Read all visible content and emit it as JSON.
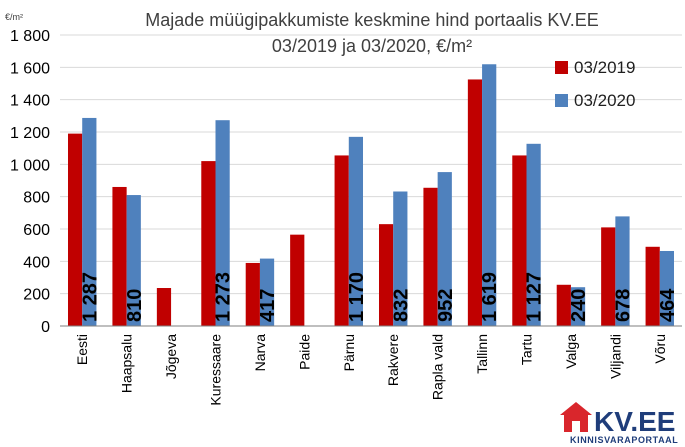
{
  "chart_data": {
    "type": "bar",
    "title_lines": [
      "Majade müügipakkumiste keskmine hind portaalis KV.EE",
      "03/2019 ja 03/2020, €/m²"
    ],
    "unit_label": "€/m²",
    "categories": [
      "Eesti",
      "Haapsalu",
      "Jõgeva",
      "Kuressaare",
      "Narva",
      "Paide",
      "Pärnu",
      "Rakvere",
      "Rapla vald",
      "Tallinn",
      "Tartu",
      "Valga",
      "Viljandi",
      "Võru"
    ],
    "series": [
      {
        "name": "03/2019",
        "color": "#c00000",
        "values": [
          1190,
          860,
          235,
          1020,
          390,
          565,
          1055,
          630,
          855,
          1525,
          1055,
          255,
          610,
          490
        ]
      },
      {
        "name": "03/2020",
        "color": "#4f81bd",
        "values": [
          1287,
          810,
          null,
          1273,
          417,
          null,
          1170,
          832,
          952,
          1619,
          1127,
          240,
          678,
          464
        ]
      }
    ],
    "value_labels": [
      "1 287",
      "810",
      "",
      "1 273",
      "417",
      "",
      "1 170",
      "832",
      "952",
      "1 619",
      "1 127",
      "240",
      "678",
      "464"
    ],
    "ylim": [
      0,
      1800
    ],
    "yticks": [
      0,
      200,
      400,
      600,
      800,
      1000,
      1200,
      1400,
      1600,
      1800
    ],
    "ytick_labels": [
      "0",
      "200",
      "400",
      "600",
      "800",
      "1 000",
      "1 200",
      "1 400",
      "1 600",
      "1 800"
    ],
    "grid": true,
    "legend_position": "top-right"
  },
  "logo": {
    "main_text": "KV.EE",
    "sub_text": "KINNISVARAPORTAAL",
    "color": "#1f3d7a",
    "accent_color": "#d9262c"
  }
}
